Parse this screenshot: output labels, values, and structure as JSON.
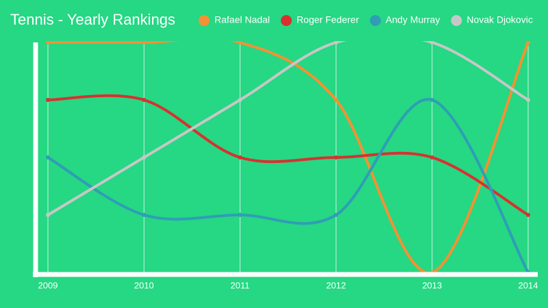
{
  "chart_data": {
    "type": "line",
    "title": "Tennis - Yearly Rankings",
    "categories": [
      "2009",
      "2010",
      "2011",
      "2012",
      "2013",
      "2014"
    ],
    "series": [
      {
        "name": "Rafael Nadal",
        "color": "#f39232",
        "values": [
          5,
          5,
          5,
          4,
          1,
          5
        ]
      },
      {
        "name": "Roger Federer",
        "color": "#d8312f",
        "values": [
          4,
          4,
          3,
          3,
          3,
          2
        ]
      },
      {
        "name": "Andy Murray",
        "color": "#2f9eb5",
        "values": [
          3,
          2,
          2,
          2,
          4,
          1
        ]
      },
      {
        "name": "Novak Djokovic",
        "color": "#c7c7c7",
        "values": [
          2,
          3,
          4,
          5,
          5,
          4
        ]
      }
    ],
    "ylim": [
      1,
      5
    ],
    "grid": true
  }
}
